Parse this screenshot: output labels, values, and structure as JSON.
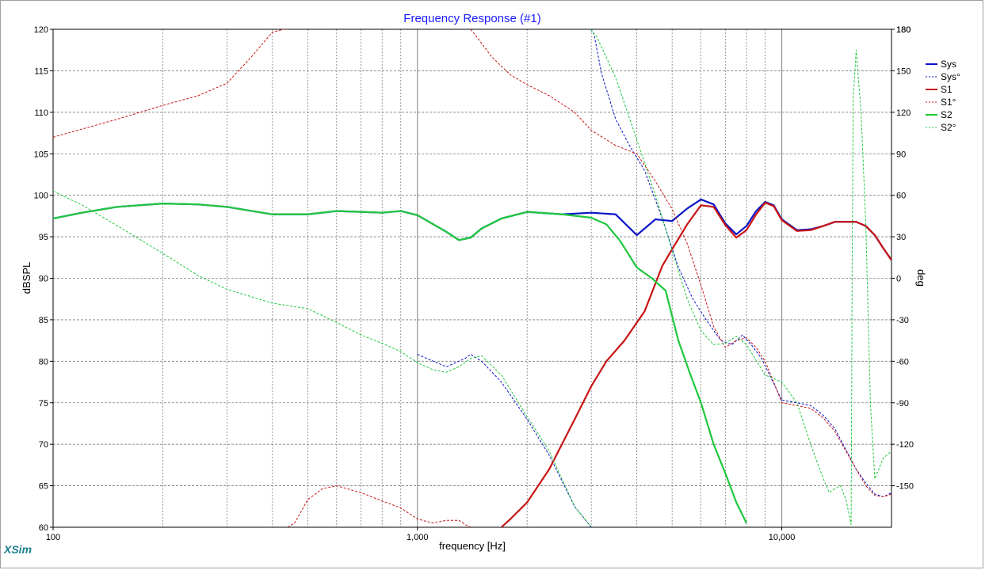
{
  "app": {
    "brand": "XSim"
  },
  "chart_data": {
    "type": "line",
    "title": "Frequency Response (#1)",
    "xlabel": "frequency [Hz]",
    "ylabel": "dBSPL",
    "y2label": "deg",
    "xscale": "log",
    "xlim": [
      100,
      20000
    ],
    "ylim": [
      60,
      120
    ],
    "y2lim": [
      -180,
      180
    ],
    "grid": true,
    "legend_position": "top-right",
    "x_tick_labels": [
      "100",
      "1,000",
      "10,000"
    ],
    "x_tick_values": [
      100,
      1000,
      10000
    ],
    "y_ticks": [
      60,
      65,
      70,
      75,
      80,
      85,
      90,
      95,
      100,
      105,
      110,
      115,
      120
    ],
    "y2_ticks": [
      -150,
      -120,
      -90,
      -60,
      -30,
      0,
      30,
      60,
      90,
      120,
      150,
      180
    ],
    "colors": {
      "Sys": "#0a14c8",
      "S1": "#c81414",
      "S2": "#1ec83c",
      "grid": "#7f7f7f"
    },
    "series": [
      {
        "name": "Sys",
        "axis": "y",
        "style": "solid",
        "x": [
          100,
          120,
          150,
          200,
          250,
          300,
          400,
          500,
          600,
          700,
          800,
          900,
          1000,
          1200,
          1300,
          1400,
          1500,
          1700,
          2000,
          2500,
          3000,
          3500,
          4000,
          4500,
          5000,
          5500,
          6000,
          6500,
          7000,
          7500,
          8000,
          8500,
          9000,
          9500,
          10000,
          11000,
          12000,
          13000,
          14000,
          15000,
          16000,
          17000,
          18000,
          19000,
          20000
        ],
        "values": [
          97.2,
          97.9,
          98.6,
          99.0,
          98.9,
          98.6,
          97.7,
          97.7,
          98.1,
          98.0,
          97.9,
          98.1,
          97.6,
          95.6,
          94.6,
          94.9,
          96.0,
          97.2,
          98.0,
          97.7,
          97.9,
          97.7,
          95.2,
          97.1,
          96.9,
          98.4,
          99.5,
          98.9,
          96.6,
          95.3,
          96.3,
          98.1,
          99.2,
          98.8,
          97.1,
          95.8,
          95.9,
          96.3,
          96.8,
          96.8,
          96.8,
          96.3,
          95.2,
          93.6,
          92.2
        ]
      },
      {
        "name": "Sys°",
        "axis": "y2",
        "style": "dashed",
        "x": [
          1000,
          1200,
          1350,
          1400,
          1500,
          1700,
          2000,
          2300,
          2700,
          3000,
          3010,
          3050,
          3200,
          3500,
          3800,
          4200,
          4700,
          5200,
          5700,
          6200,
          6800,
          7300,
          7800,
          8300,
          8800,
          9300,
          9700,
          10000,
          11000,
          12000,
          13000,
          14000,
          15000,
          16000,
          17000,
          18000,
          19000,
          20000
        ],
        "values": [
          -55,
          -64,
          -58,
          -55,
          -60,
          -75,
          -102,
          -128,
          -165,
          -180,
          178,
          177,
          148,
          115,
          97,
          78,
          43,
          8,
          -15,
          -30,
          -45,
          -48,
          -41,
          -49,
          -58,
          -71,
          -81,
          -88,
          -90,
          -92,
          -99,
          -109,
          -124,
          -138,
          -148,
          -156,
          -158,
          -155
        ]
      },
      {
        "name": "S1",
        "axis": "y",
        "style": "solid",
        "x": [
          1700,
          1800,
          2000,
          2300,
          2700,
          3000,
          3300,
          3700,
          4200,
          4700,
          5000,
          5500,
          6000,
          6500,
          7000,
          7500,
          8000,
          8500,
          9000,
          9500,
          10000,
          11000,
          12000,
          13000,
          14000,
          15000,
          16000,
          17000,
          18000,
          19000,
          20000
        ],
        "values": [
          60.0,
          61.0,
          63.0,
          67.0,
          73.0,
          77.0,
          80.0,
          82.5,
          86.0,
          91.5,
          93.5,
          96.5,
          98.8,
          98.6,
          96.4,
          94.9,
          95.8,
          97.7,
          99.1,
          98.7,
          97.0,
          95.7,
          95.8,
          96.3,
          96.8,
          96.8,
          96.8,
          96.3,
          95.2,
          93.6,
          92.2
        ]
      },
      {
        "name": "S1°",
        "axis": "y2",
        "style": "dashed",
        "x": [
          100,
          150,
          200,
          250,
          300,
          350,
          400,
          430,
          440,
          460,
          500,
          550,
          600,
          700,
          800,
          900,
          1000,
          1100,
          1200,
          1300,
          1350,
          1400,
          1450,
          1600,
          1800,
          2000,
          2300,
          2700,
          3000,
          3500,
          4000,
          4500,
          5000,
          5500,
          6000,
          6500,
          7000,
          7500,
          8000,
          8500,
          9000,
          9500,
          10000,
          11000,
          12000,
          13000,
          14000,
          15000,
          16000,
          17000,
          18000,
          19000,
          20000
        ],
        "values": [
          102,
          115,
          125,
          132,
          141,
          160,
          178,
          180,
          -180,
          -177,
          -160,
          -152,
          -150,
          -155,
          -161,
          -166,
          -174,
          -177,
          -175,
          -175,
          -178,
          180,
          175,
          160,
          147,
          140,
          132,
          120,
          107,
          96,
          90,
          70,
          50,
          25,
          -5,
          -35,
          -50,
          -45,
          -43,
          -50,
          -60,
          -75,
          -90,
          -92,
          -94,
          -101,
          -111,
          -125,
          -138,
          -150,
          -157,
          -158,
          -156
        ]
      },
      {
        "name": "S2",
        "axis": "y",
        "style": "solid",
        "x": [
          100,
          120,
          150,
          200,
          250,
          300,
          400,
          500,
          600,
          700,
          800,
          900,
          1000,
          1200,
          1300,
          1400,
          1500,
          1700,
          2000,
          2500,
          3000,
          3300,
          3600,
          4000,
          4400,
          4800,
          5200,
          5600,
          6000,
          6500,
          7000,
          7500,
          8000
        ],
        "values": [
          97.2,
          97.9,
          98.6,
          99.0,
          98.9,
          98.6,
          97.7,
          97.7,
          98.1,
          98.0,
          97.9,
          98.1,
          97.6,
          95.6,
          94.6,
          94.9,
          96.0,
          97.2,
          98.0,
          97.7,
          97.3,
          96.5,
          94.5,
          91.3,
          90.0,
          88.5,
          82.5,
          78.5,
          75.0,
          70.0,
          66.5,
          63.0,
          60.5
        ]
      },
      {
        "name": "S2°",
        "axis": "y2",
        "style": "dashed",
        "x": [
          100,
          120,
          150,
          200,
          250,
          300,
          400,
          500,
          600,
          700,
          800,
          900,
          1000,
          1100,
          1200,
          1300,
          1400,
          1500,
          1700,
          2000,
          2300,
          2700,
          3000,
          3010,
          3100,
          3500,
          4000,
          4500,
          5000,
          5500,
          6000,
          6500,
          7000,
          7500,
          8000,
          9000,
          10000,
          11000,
          12000,
          13000,
          13500,
          14000,
          14500,
          15000,
          15500,
          15600,
          15700,
          16000,
          16500,
          17000,
          17500,
          18000,
          19000,
          20000
        ],
        "values": [
          63,
          53,
          38,
          18,
          2,
          -8,
          -18,
          -22,
          -32,
          -41,
          -47,
          -53,
          -61,
          -66,
          -68,
          -64,
          -58,
          -56,
          -70,
          -100,
          -125,
          -165,
          -180,
          178,
          175,
          145,
          100,
          60,
          20,
          -15,
          -38,
          -48,
          -47,
          -42,
          -48,
          -70,
          -75,
          -90,
          -120,
          -145,
          -155,
          -152,
          -150,
          -160,
          -178,
          10,
          130,
          165,
          120,
          40,
          -90,
          -145,
          -130,
          -125
        ]
      }
    ]
  }
}
